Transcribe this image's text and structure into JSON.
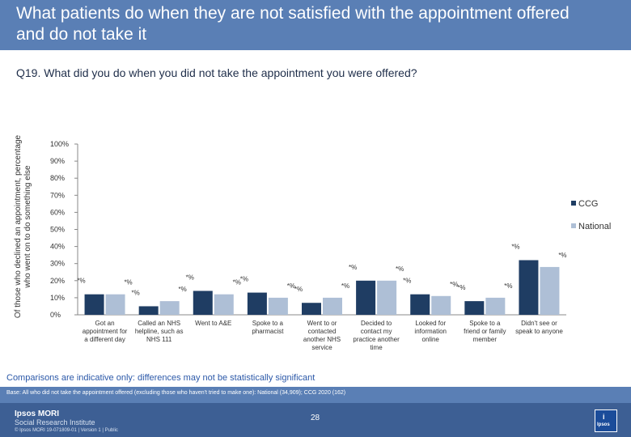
{
  "header": {
    "title": "What patients do when they are not satisfied with the appointment offered and do not take it"
  },
  "question": "Q19. What did you do when you did not take the appointment you were offered?",
  "chart_data": {
    "type": "bar",
    "title": "Q19. What did you do when you did not take the appointment you were offered?",
    "ylabel": "Of those who declined an appointment, percentage who went on to do something else",
    "xlabel": "",
    "ylim": [
      0,
      100
    ],
    "yticks": [
      0,
      10,
      20,
      30,
      40,
      50,
      60,
      70,
      80,
      90,
      100
    ],
    "ytick_labels": [
      "0%",
      "10%",
      "20%",
      "30%",
      "40%",
      "50%",
      "60%",
      "70%",
      "80%",
      "90%",
      "100%"
    ],
    "grid": false,
    "legend_position": "right",
    "categories": [
      [
        "Got an",
        "appointment for",
        "a different day"
      ],
      [
        "Called an NHS",
        "helpline, such as",
        "NHS 111"
      ],
      [
        "Went to A&E"
      ],
      [
        "Spoke to a",
        "pharmacist"
      ],
      [
        "Went to or",
        "contacted",
        "another NHS",
        "service"
      ],
      [
        "Decided to",
        "contact my",
        "practice another",
        "time"
      ],
      [
        "Looked for",
        "information",
        "online"
      ],
      [
        "Spoke to a",
        "friend or family",
        "member"
      ],
      [
        "Didn't see or",
        "speak to anyone"
      ]
    ],
    "series": [
      {
        "name": "CCG",
        "color": "#1f3d63",
        "values": [
          12,
          5,
          14,
          13,
          7,
          20,
          12,
          8,
          32
        ],
        "labels": [
          "*%",
          "*%",
          "*%",
          "*%",
          "*%",
          "*%",
          "*%",
          "*%",
          "*%"
        ]
      },
      {
        "name": "National",
        "color": "#aebfd6",
        "values": [
          12,
          8,
          12,
          10,
          10,
          20,
          11,
          10,
          28
        ],
        "labels": [
          "*%",
          "*%",
          "*%",
          "*%",
          "*%",
          "*%",
          "*%",
          "*%",
          "*%"
        ]
      }
    ]
  },
  "note": "Comparisons are indicative only: differences may not be statistically significant",
  "base": "Base: All who did not take the appointment offered (excluding those who haven't tried to make one): National (34,909); CCG 2020 (162)",
  "footer": {
    "brand_line1": "Ipsos MORI",
    "brand_line2": "Social Research Institute",
    "copyright": "© Ipsos MORI     19-071809-01 | Version 1 | Public",
    "page_number": "28",
    "logo_mark": "i",
    "logo_text": "Ipsos"
  }
}
